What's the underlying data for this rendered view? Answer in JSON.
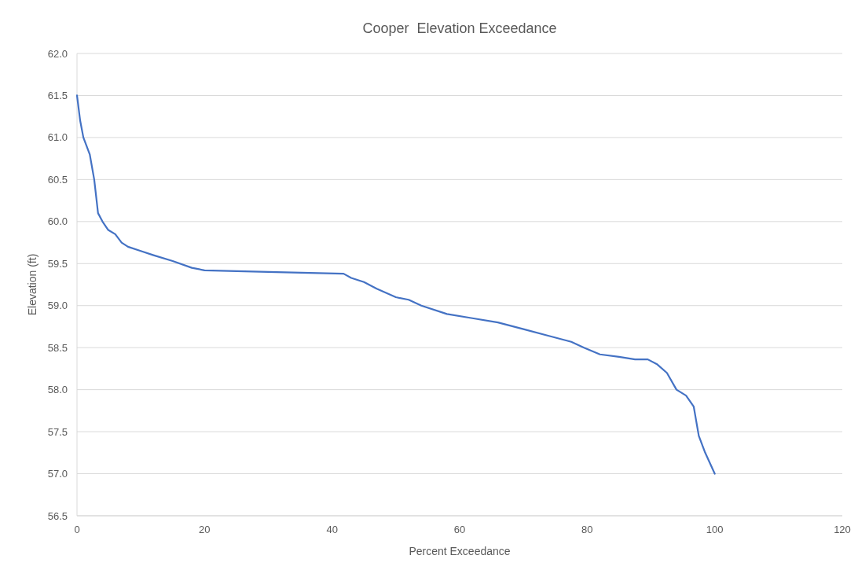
{
  "chart_data": {
    "type": "line",
    "title": "Cooper  Elevation Exceedance",
    "xlabel": "Percent Exceedance",
    "ylabel": "Elevation (ft)",
    "xlim": [
      0,
      120
    ],
    "xticks": [
      0,
      20,
      40,
      60,
      80,
      100,
      120
    ],
    "ylim": [
      56.5,
      62.0
    ],
    "yticks": [
      {
        "value": 56.5,
        "label": "56.5"
      },
      {
        "value": 57,
        "label": "57.0"
      },
      {
        "value": 57.5,
        "label": "57.5"
      },
      {
        "value": 58,
        "label": "58.0"
      },
      {
        "value": 58.5,
        "label": "58.5"
      },
      {
        "value": 59,
        "label": "59.0"
      },
      {
        "value": 59.5,
        "label": "59.5"
      },
      {
        "value": 60,
        "label": "60.0"
      },
      {
        "value": 60.5,
        "label": "60.5"
      },
      {
        "value": 61,
        "label": "61.0"
      },
      {
        "value": 61.5,
        "label": "61.5"
      },
      {
        "value": 62,
        "label": "62.0"
      }
    ],
    "grid": "y",
    "marker": "none",
    "line_style": "solid",
    "series": [
      {
        "color": "#4472c4",
        "x": [
          0,
          0.5,
          1,
          2,
          2.7,
          3.3,
          4,
          4.9,
          6,
          7,
          8,
          10,
          12,
          15,
          18,
          20,
          30,
          41.8,
          43,
          45,
          47,
          50,
          52,
          54,
          58,
          62,
          66,
          70,
          74,
          77.5,
          79.5,
          82,
          85,
          87.5,
          89.5,
          91,
          92.5,
          94,
          95.5,
          96.7,
          97.5,
          98.5,
          100
        ],
        "values": [
          61.5,
          61.2,
          61.0,
          60.8,
          60.5,
          60.1,
          60.0,
          59.9,
          59.85,
          59.75,
          59.7,
          59.65,
          59.6,
          59.53,
          59.45,
          59.42,
          59.4,
          59.38,
          59.33,
          59.28,
          59.2,
          59.1,
          59.07,
          59.0,
          58.9,
          58.85,
          58.8,
          58.72,
          58.64,
          58.57,
          58.5,
          58.42,
          58.39,
          58.36,
          58.36,
          58.3,
          58.2,
          58.0,
          57.93,
          57.8,
          57.45,
          57.25,
          57.0
        ]
      }
    ]
  }
}
